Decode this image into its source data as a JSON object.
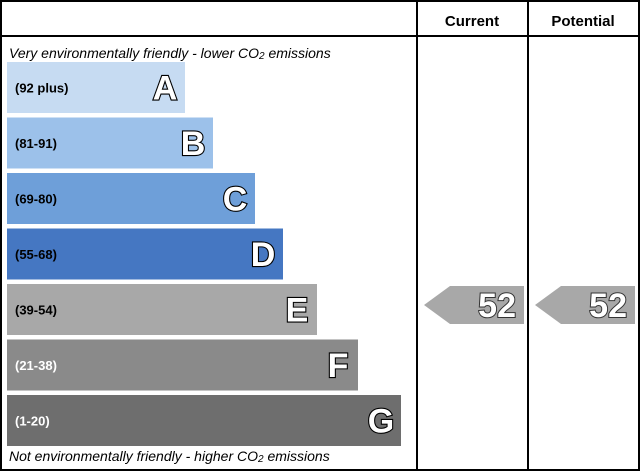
{
  "header": {
    "current_label": "Current",
    "potential_label": "Potential"
  },
  "notes": {
    "top_prefix": "Very environmentally friendly - lower CO",
    "top_suffix": " emissions",
    "bottom_prefix": "Not environmentally friendly - higher CO",
    "bottom_suffix": " emissions",
    "subscript": "2"
  },
  "chart_data": {
    "type": "bar",
    "categories": [
      "A",
      "B",
      "C",
      "D",
      "E",
      "F",
      "G"
    ],
    "bands": [
      {
        "letter": "A",
        "range": "(92 plus)",
        "color": "#c6dbf2",
        "light_text": false
      },
      {
        "letter": "B",
        "range": "(81-91)",
        "color": "#9cc1ea",
        "light_text": false
      },
      {
        "letter": "C",
        "range": "(69-80)",
        "color": "#6e9fd9",
        "light_text": false
      },
      {
        "letter": "D",
        "range": "(55-68)",
        "color": "#4577c2",
        "light_text": false
      },
      {
        "letter": "E",
        "range": "(39-54)",
        "color": "#a8a8a8",
        "light_text": false
      },
      {
        "letter": "F",
        "range": "(21-38)",
        "color": "#8a8a8a",
        "light_text": true
      },
      {
        "letter": "G",
        "range": "(1-20)",
        "color": "#6e6e6e",
        "light_text": true
      }
    ],
    "current": {
      "value": 52,
      "band": "E",
      "color": "#a8a8a8"
    },
    "potential": {
      "value": 52,
      "band": "E",
      "color": "#a8a8a8"
    }
  }
}
